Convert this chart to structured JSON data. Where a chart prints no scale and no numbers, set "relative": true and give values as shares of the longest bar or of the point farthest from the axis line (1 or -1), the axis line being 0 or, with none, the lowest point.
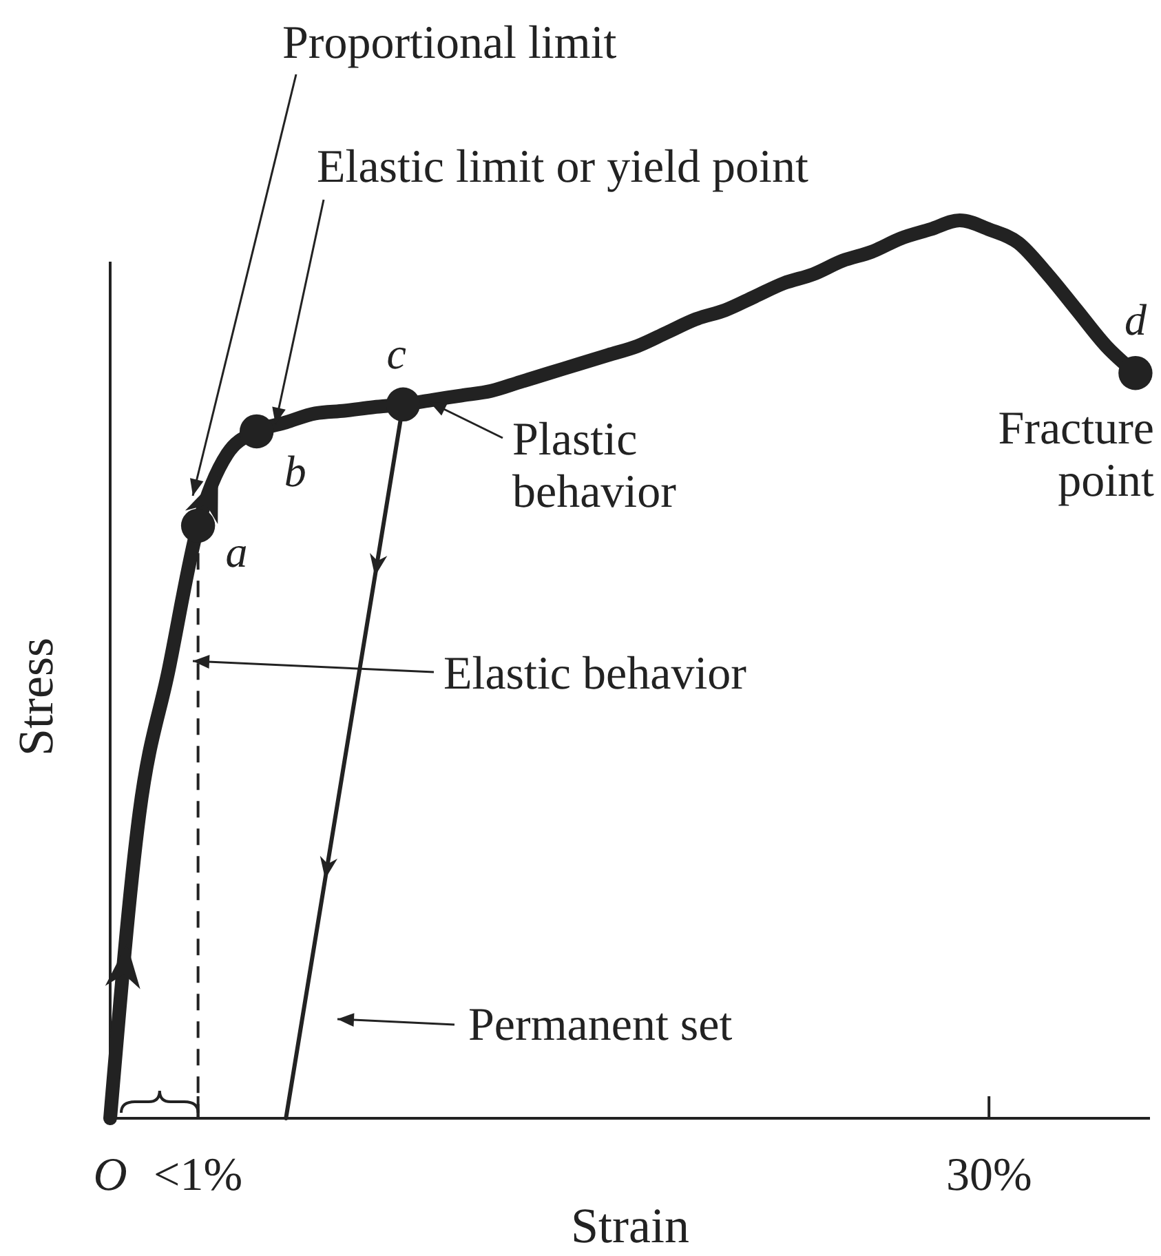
{
  "chart_data": {
    "type": "line",
    "relative": true,
    "xlabel": "Strain",
    "ylabel": "Stress",
    "categories": [
      "O",
      null,
      null,
      "<1%",
      null,
      null,
      null,
      null,
      null,
      null,
      null,
      null,
      null,
      null,
      null,
      null,
      null,
      null,
      null,
      null,
      null,
      null,
      null,
      null,
      null,
      null,
      null,
      null,
      null,
      null,
      "30%",
      null,
      null,
      null,
      null,
      null
    ],
    "series": [
      {
        "color": "#222222",
        "values": [
          0,
          0.34,
          0.5,
          0.66,
          0.74,
          0.765,
          0.775,
          0.785,
          0.788,
          0.792,
          0.795,
          0.8,
          0.805,
          0.81,
          0.82,
          0.83,
          0.84,
          0.85,
          0.86,
          0.875,
          0.89,
          0.9,
          0.915,
          0.93,
          0.94,
          0.955,
          0.965,
          0.98,
          0.99,
          1.0,
          0.99,
          0.975,
          0.94,
          0.9,
          0.86,
          0.83
        ]
      },
      {
        "color": "#222222",
        "values": [
          null,
          null,
          null,
          null,
          null,
          null,
          0,
          0.199,
          0.398,
          0.596,
          0.795,
          null,
          null,
          null,
          null,
          null,
          null,
          null,
          null,
          null,
          null,
          null,
          null,
          null,
          null,
          null,
          null,
          null,
          null,
          null,
          null,
          null,
          null,
          null,
          null,
          null
        ]
      },
      {
        "type": "scatter",
        "color": "#222222",
        "marker": "circle",
        "values": [
          null,
          null,
          null,
          0.66,
          null,
          0.765,
          null,
          null,
          null,
          null,
          0.795,
          null,
          null,
          null,
          null,
          null,
          null,
          null,
          null,
          null,
          null,
          null,
          null,
          null,
          null,
          null,
          null,
          null,
          null,
          null,
          null,
          null,
          null,
          null,
          null,
          0.83
        ]
      }
    ],
    "annotations": [
      "Proportional limit",
      "Elastic limit or yield point",
      "Plastic\nbehavior",
      "Elastic behavior",
      "Permanent set",
      "Fracture\npoint",
      "a",
      "b",
      "c",
      "d"
    ]
  }
}
